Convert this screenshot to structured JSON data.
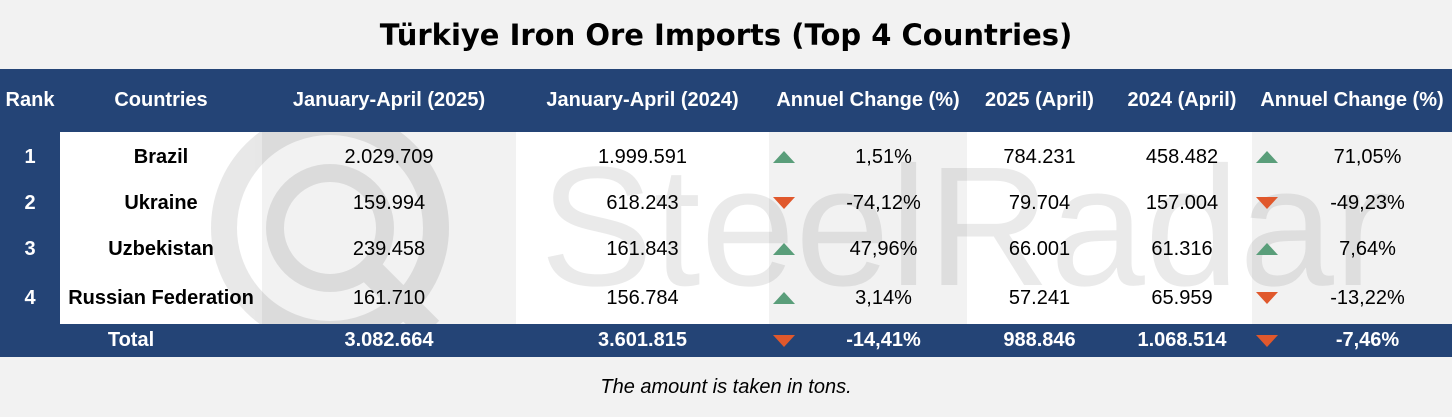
{
  "title": "Türkiye Iron Ore Imports (Top 4 Countries)",
  "watermark": "SteelRadar",
  "note": "The amount is taken in tons.",
  "colors": {
    "header_bg": "#244476",
    "up": "#5a9e7a",
    "down": "#e0582c"
  },
  "chart_data": {
    "type": "table",
    "columns": [
      "Rank",
      "Countries",
      "January-April (2025)",
      "January-April (2024)",
      "Annuel Change (%)",
      "2025 (April)",
      "2024 (April)",
      "Annuel Change (%)"
    ],
    "rows": [
      {
        "rank": "1",
        "country": "Brazil",
        "ja2025": "2.029.709",
        "ja2024": "1.999.591",
        "ja_change": "1,51%",
        "ja_dir": "up-icon",
        "apr2025": "784.231",
        "apr2024": "458.482",
        "apr_change": "71,05%",
        "apr_dir": "up-icon"
      },
      {
        "rank": "2",
        "country": "Ukraine",
        "ja2025": "159.994",
        "ja2024": "618.243",
        "ja_change": "-74,12%",
        "ja_dir": "down-icon",
        "apr2025": "79.704",
        "apr2024": "157.004",
        "apr_change": "-49,23%",
        "apr_dir": "down-icon"
      },
      {
        "rank": "3",
        "country": "Uzbekistan",
        "ja2025": "239.458",
        "ja2024": "161.843",
        "ja_change": "47,96%",
        "ja_dir": "up-icon",
        "apr2025": "66.001",
        "apr2024": "61.316",
        "apr_change": "7,64%",
        "apr_dir": "up-icon"
      },
      {
        "rank": "4",
        "country": "Russian Federation",
        "ja2025": "161.710",
        "ja2024": "156.784",
        "ja_change": "3,14%",
        "ja_dir": "up-icon",
        "apr2025": "57.241",
        "apr2024": "65.959",
        "apr_change": "-13,22%",
        "apr_dir": "down-icon"
      }
    ],
    "total": {
      "label": "Total",
      "ja2025": "3.082.664",
      "ja2024": "3.601.815",
      "ja_change": "-14,41%",
      "ja_dir": "down-icon",
      "apr2025": "988.846",
      "apr2024": "1.068.514",
      "apr_change": "-7,46%",
      "apr_dir": "down-icon"
    }
  }
}
